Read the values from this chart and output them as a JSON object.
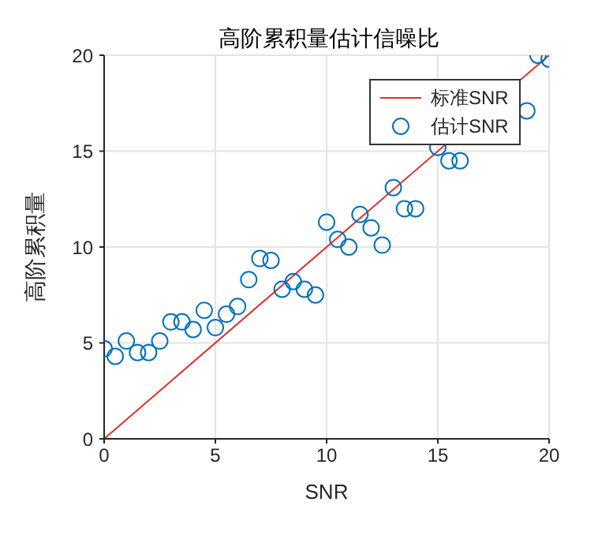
{
  "chart_data": {
    "type": "scatter",
    "title": "高阶累积量估计信噪比",
    "xlabel": "SNR",
    "ylabel": "高阶累积量",
    "xlim": [
      0,
      20
    ],
    "ylim": [
      0,
      20
    ],
    "xticks": [
      0,
      5,
      10,
      15,
      20
    ],
    "yticks": [
      0,
      5,
      10,
      15,
      20
    ],
    "grid": true,
    "legend": "top right",
    "marker": "circle",
    "series": [
      {
        "name": "标准SNR",
        "type": "line",
        "color": "#e0302a",
        "marker": "none",
        "x": [
          0,
          20
        ],
        "values": [
          0,
          20
        ]
      },
      {
        "name": "估计SNR",
        "color": "#0072bd",
        "x": [
          0,
          0.5,
          1,
          1.5,
          2,
          2.5,
          3,
          3.5,
          4,
          4.5,
          5,
          5.5,
          6,
          6.5,
          7,
          7.5,
          8,
          8.5,
          9,
          9.5,
          10,
          10.5,
          11,
          11.5,
          12,
          12.5,
          13,
          13.5,
          14,
          14.5,
          15,
          15.5,
          16,
          16.5,
          17,
          17.5,
          18,
          18.5,
          19,
          19.5,
          20
        ],
        "values": [
          4.7,
          4.3,
          5.1,
          4.5,
          4.5,
          5.1,
          6.1,
          6.1,
          5.7,
          6.7,
          5.8,
          6.5,
          6.9,
          8.3,
          9.4,
          9.3,
          7.8,
          8.2,
          7.8,
          7.5,
          11.3,
          10.4,
          10.0,
          11.7,
          11.0,
          10.1,
          13.1,
          12.0,
          12.0,
          null,
          15.2,
          14.5,
          14.5,
          null,
          null,
          null,
          null,
          null,
          17.1,
          20.0,
          19.8
        ]
      }
    ]
  }
}
